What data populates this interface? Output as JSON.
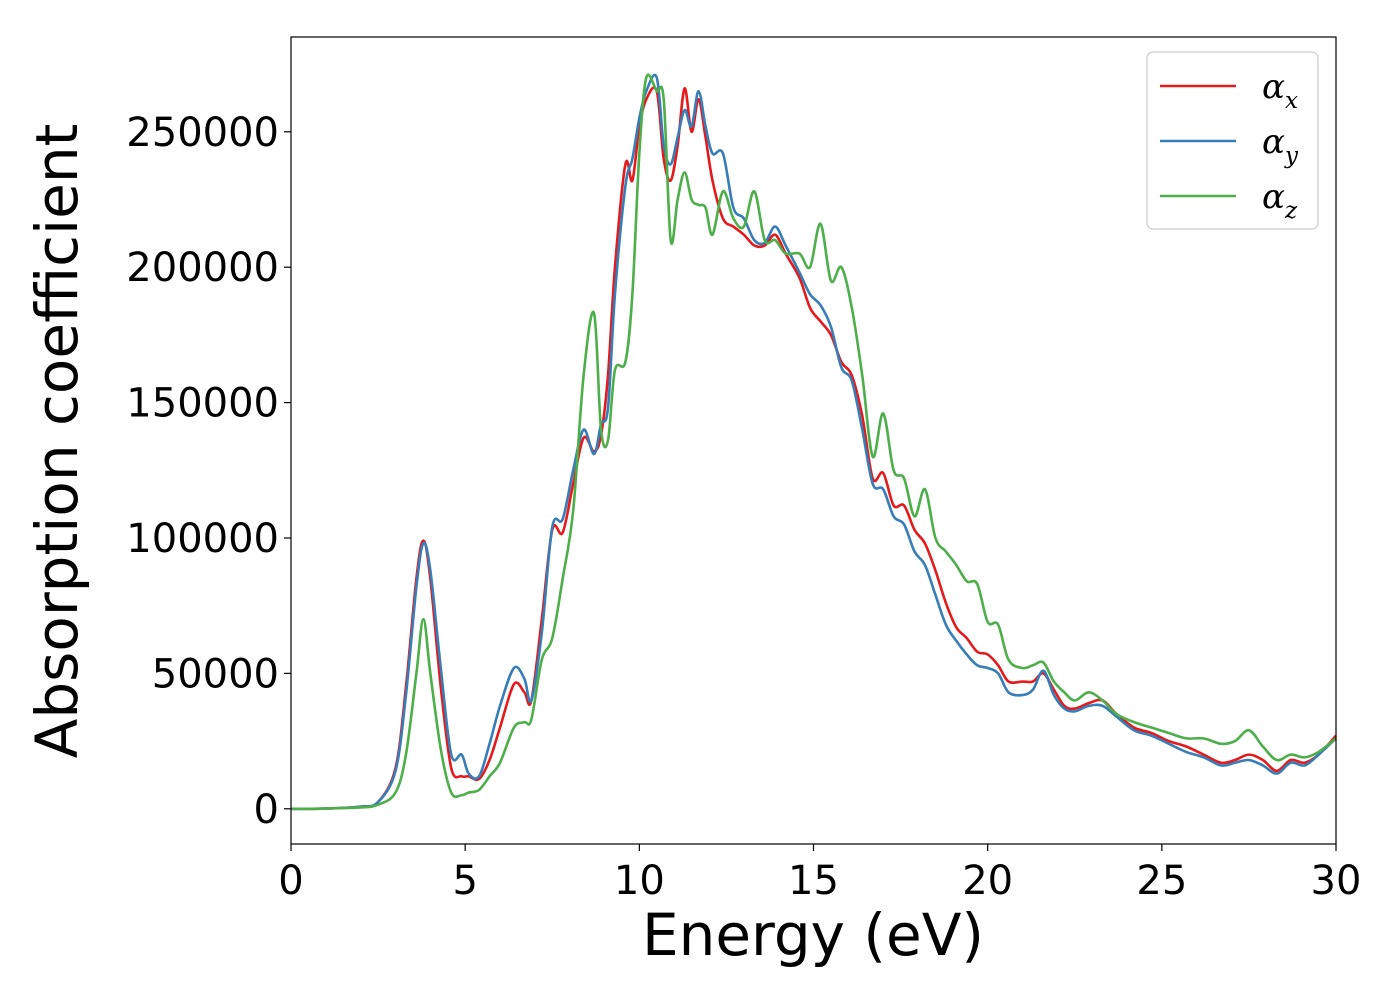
{
  "chart_data": {
    "type": "line",
    "xlabel": "Energy (eV)",
    "ylabel": "Absorption coefficient",
    "xlim": [
      0,
      30
    ],
    "ylim": [
      -13000,
      285000
    ],
    "xticks": [
      "0",
      "5",
      "10",
      "15",
      "20",
      "25",
      "30"
    ],
    "yticks": [
      "0",
      "50000",
      "100000",
      "150000",
      "200000",
      "250000"
    ],
    "grid": false,
    "legend": "top-right",
    "x": [
      0,
      1,
      2,
      2.5,
      3,
      3.3,
      3.6,
      3.8,
      4.0,
      4.3,
      4.6,
      4.9,
      5.1,
      5.4,
      5.7,
      6.0,
      6.4,
      6.7,
      6.9,
      7.2,
      7.5,
      7.8,
      8.1,
      8.4,
      8.7,
      8.9,
      9.1,
      9.3,
      9.6,
      9.8,
      10.0,
      10.2,
      10.5,
      10.7,
      10.9,
      11.1,
      11.3,
      11.5,
      11.7,
      11.9,
      12.1,
      12.4,
      12.7,
      13.0,
      13.3,
      13.6,
      13.9,
      14.2,
      14.6,
      14.9,
      15.2,
      15.5,
      15.8,
      16.1,
      16.4,
      16.7,
      17.0,
      17.3,
      17.6,
      17.9,
      18.2,
      18.5,
      18.8,
      19.1,
      19.4,
      19.7,
      20.0,
      20.3,
      20.6,
      21.0,
      21.3,
      21.6,
      21.9,
      22.2,
      22.5,
      22.9,
      23.3,
      23.7,
      24.2,
      24.7,
      25.2,
      25.7,
      26.2,
      26.7,
      27.1,
      27.5,
      27.9,
      28.3,
      28.7,
      29.1,
      29.5,
      30.0
    ],
    "series": [
      {
        "name": "α_x",
        "color": "#e41a1c",
        "values": [
          0,
          100,
          800,
          2500,
          15000,
          45000,
          85000,
          99000,
          85000,
          45000,
          15000,
          12000,
          12000,
          11000,
          18000,
          30000,
          46000,
          43000,
          40000,
          70000,
          103000,
          102000,
          120000,
          137000,
          132000,
          138000,
          160000,
          200000,
          238000,
          232000,
          252000,
          262000,
          265000,
          240000,
          232000,
          245000,
          266000,
          250000,
          262000,
          248000,
          232000,
          218000,
          215000,
          212000,
          208000,
          208000,
          212000,
          205000,
          196000,
          185000,
          180000,
          175000,
          165000,
          160000,
          145000,
          122000,
          124000,
          112000,
          112000,
          103000,
          98000,
          88000,
          76000,
          67000,
          63000,
          58000,
          57000,
          53000,
          47000,
          47000,
          47000,
          50000,
          44000,
          38000,
          37000,
          39000,
          40000,
          35000,
          30000,
          28000,
          25000,
          23000,
          20000,
          17000,
          18000,
          20000,
          18000,
          14000,
          18000,
          17000,
          20000,
          27000
        ]
      },
      {
        "name": "α_y",
        "color": "#377eb8",
        "values": [
          0,
          100,
          800,
          2500,
          14000,
          42000,
          82000,
          98000,
          88000,
          52000,
          20000,
          20000,
          13000,
          12000,
          24000,
          38000,
          52000,
          48000,
          40000,
          65000,
          104000,
          107000,
          125000,
          140000,
          131000,
          142000,
          148000,
          190000,
          230000,
          240000,
          255000,
          265000,
          270000,
          245000,
          238000,
          248000,
          258000,
          252000,
          265000,
          252000,
          242000,
          242000,
          222000,
          218000,
          210000,
          209000,
          215000,
          208000,
          198000,
          190000,
          186000,
          178000,
          163000,
          158000,
          140000,
          120000,
          118000,
          108000,
          105000,
          95000,
          90000,
          79000,
          68000,
          62000,
          57000,
          53000,
          52000,
          50000,
          43000,
          42000,
          44000,
          51000,
          42000,
          37000,
          36000,
          38000,
          38000,
          34000,
          29000,
          27000,
          24000,
          21000,
          19000,
          16000,
          17000,
          18000,
          16000,
          13000,
          17000,
          16000,
          20000,
          26000
        ]
      },
      {
        "name": "α_z",
        "color": "#4daf4a",
        "values": [
          0,
          100,
          500,
          1500,
          6000,
          20000,
          50000,
          70000,
          50000,
          22000,
          6000,
          5000,
          6000,
          7000,
          12000,
          17000,
          30000,
          32000,
          33000,
          55000,
          63000,
          85000,
          110000,
          160000,
          183000,
          140000,
          136000,
          162000,
          165000,
          190000,
          242000,
          270000,
          265000,
          262000,
          210000,
          225000,
          235000,
          225000,
          223000,
          222000,
          212000,
          228000,
          218000,
          215000,
          228000,
          210000,
          210000,
          205000,
          205000,
          200000,
          216000,
          195000,
          200000,
          185000,
          160000,
          130000,
          146000,
          125000,
          122000,
          108000,
          118000,
          100000,
          95000,
          90000,
          84000,
          83000,
          69000,
          68000,
          55000,
          52000,
          53000,
          54000,
          47000,
          43000,
          40000,
          43000,
          40000,
          35000,
          32000,
          30000,
          28000,
          26000,
          26000,
          24000,
          25000,
          29000,
          23000,
          18000,
          20000,
          19000,
          21000,
          26000
        ]
      }
    ]
  }
}
